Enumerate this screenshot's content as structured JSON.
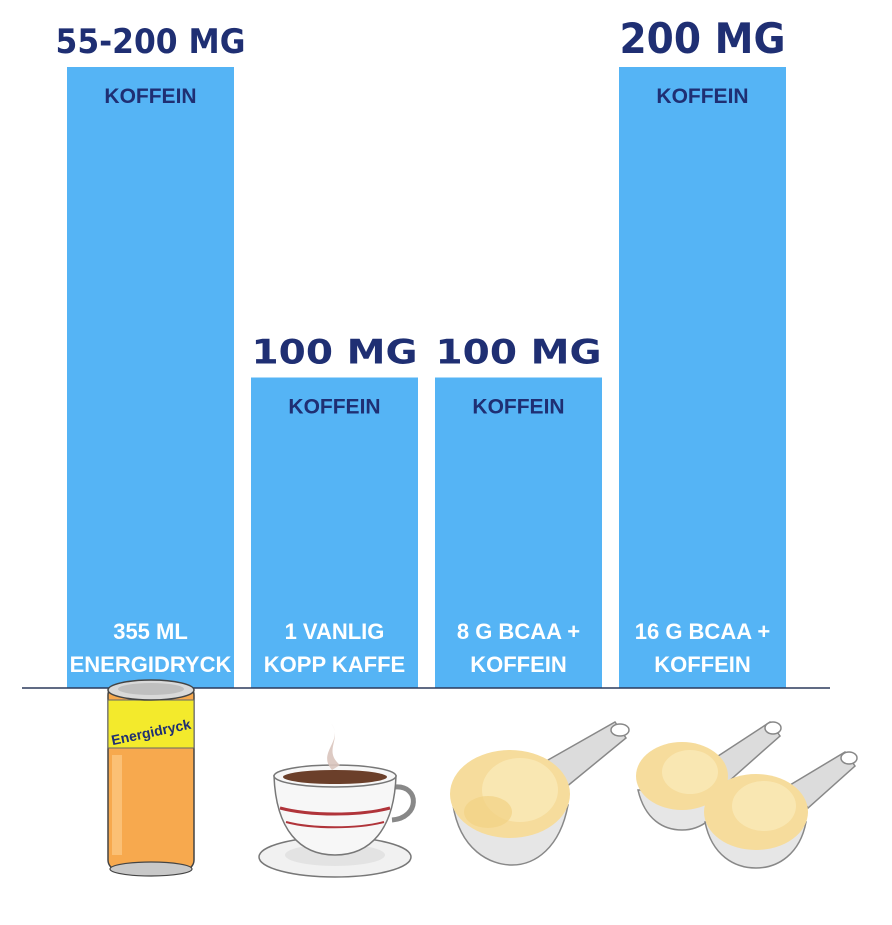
{
  "chart_data": {
    "type": "bar",
    "categories": [
      [
        "355 ML",
        "ENERGIDRYCK"
      ],
      [
        "1 VANLIG",
        "KOPP KAFFE"
      ],
      [
        "8 G BCAA +",
        "KOFFEIN"
      ],
      [
        "16 G BCAA +",
        "KOFFEIN"
      ]
    ],
    "values": [
      200,
      100,
      100,
      200
    ],
    "value_labels": [
      "55-200 MG",
      "100 MG",
      "100 MG",
      "200 MG"
    ],
    "inner_labels": [
      "KOFFEIN",
      "KOFFEIN",
      "KOFFEIN",
      "KOFFEIN"
    ],
    "ylim": [
      0,
      200
    ],
    "grid": false,
    "title": "",
    "xlabel": "",
    "ylabel": ""
  },
  "illustrations": {
    "can_label": "Energidryck",
    "icons": [
      "energy-drink-can-icon",
      "coffee-cup-icon",
      "powder-scoop-icon",
      "two-powder-scoops-icon"
    ]
  },
  "colors": {
    "bar": "#55b4f5",
    "value_text": "#1f2f73",
    "category_text": "#ffffff",
    "baseline": "#2b3a5c",
    "can_body": "#f7a94e",
    "can_label": "#f3ea2c",
    "coffee_stripe": "#b0343a",
    "powder": "#f6dc9c"
  }
}
